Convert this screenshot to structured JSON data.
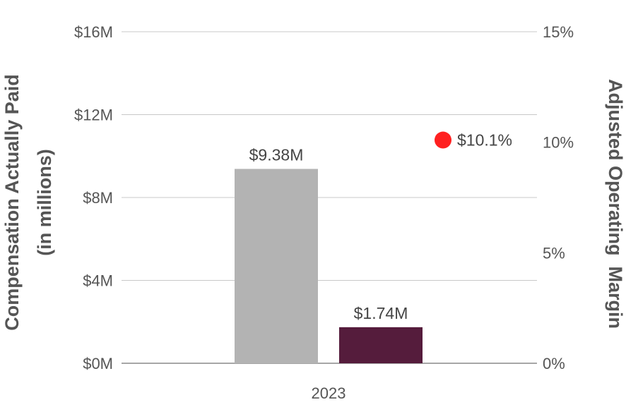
{
  "chart_data": {
    "type": "bar",
    "categories": [
      "2023"
    ],
    "series": [
      {
        "values": [
          9.38
        ],
        "color": "#b3b3b3",
        "label": "$9.38M"
      },
      {
        "values": [
          1.74
        ],
        "color": "#551c3c",
        "label": "$1.74M"
      }
    ],
    "overlay_point": {
      "value": 10.1,
      "label": "$10.1%",
      "color": "#ff2020"
    },
    "ylabel_left": [
      "Compensation Actually Paid",
      "(in millions)"
    ],
    "ylabel_right": "Adjusted Operating  Margin",
    "left_axis": {
      "ylim": [
        0,
        16
      ],
      "ticks": [
        0,
        4,
        8,
        12,
        16
      ],
      "tick_labels": [
        "$0M",
        "$4M",
        "$8M",
        "$12M",
        "$16M"
      ]
    },
    "right_axis": {
      "ylim": [
        0,
        15
      ],
      "ticks": [
        0,
        5,
        10,
        15
      ],
      "tick_labels": [
        "0%",
        "5%",
        "10%",
        "15%"
      ]
    },
    "grid": true
  }
}
